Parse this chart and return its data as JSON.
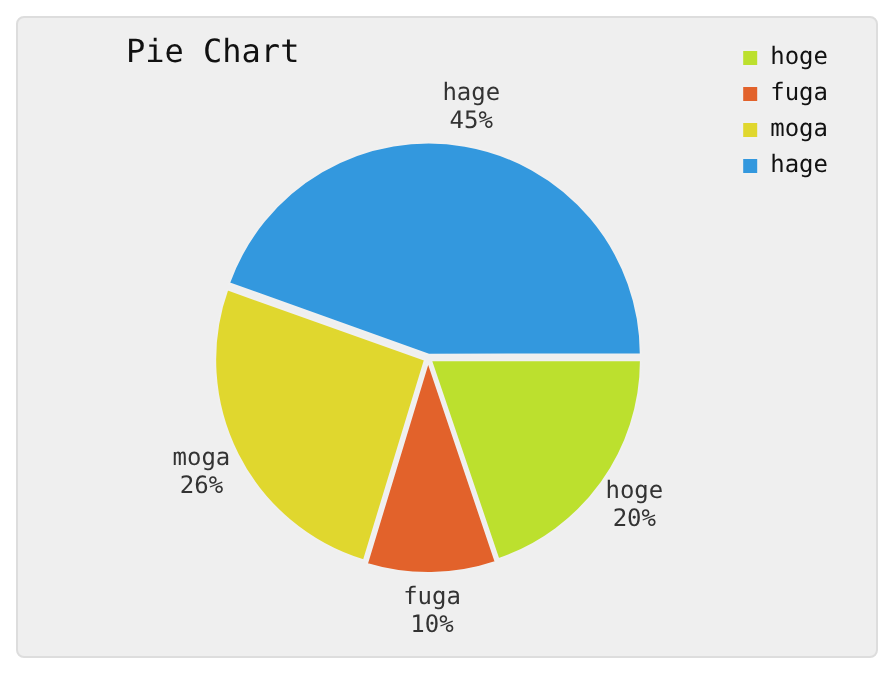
{
  "chart_data": {
    "type": "pie",
    "title": "Pie Chart",
    "categories": [
      "hoge",
      "fuga",
      "moga",
      "hage"
    ],
    "values": [
      20,
      10,
      26,
      45
    ],
    "colors": [
      "#bce02e",
      "#e2622b",
      "#e0d72e",
      "#3398de"
    ],
    "legend": "top right",
    "value_labels": [
      "20%",
      "10%",
      "26%",
      "45%"
    ]
  }
}
